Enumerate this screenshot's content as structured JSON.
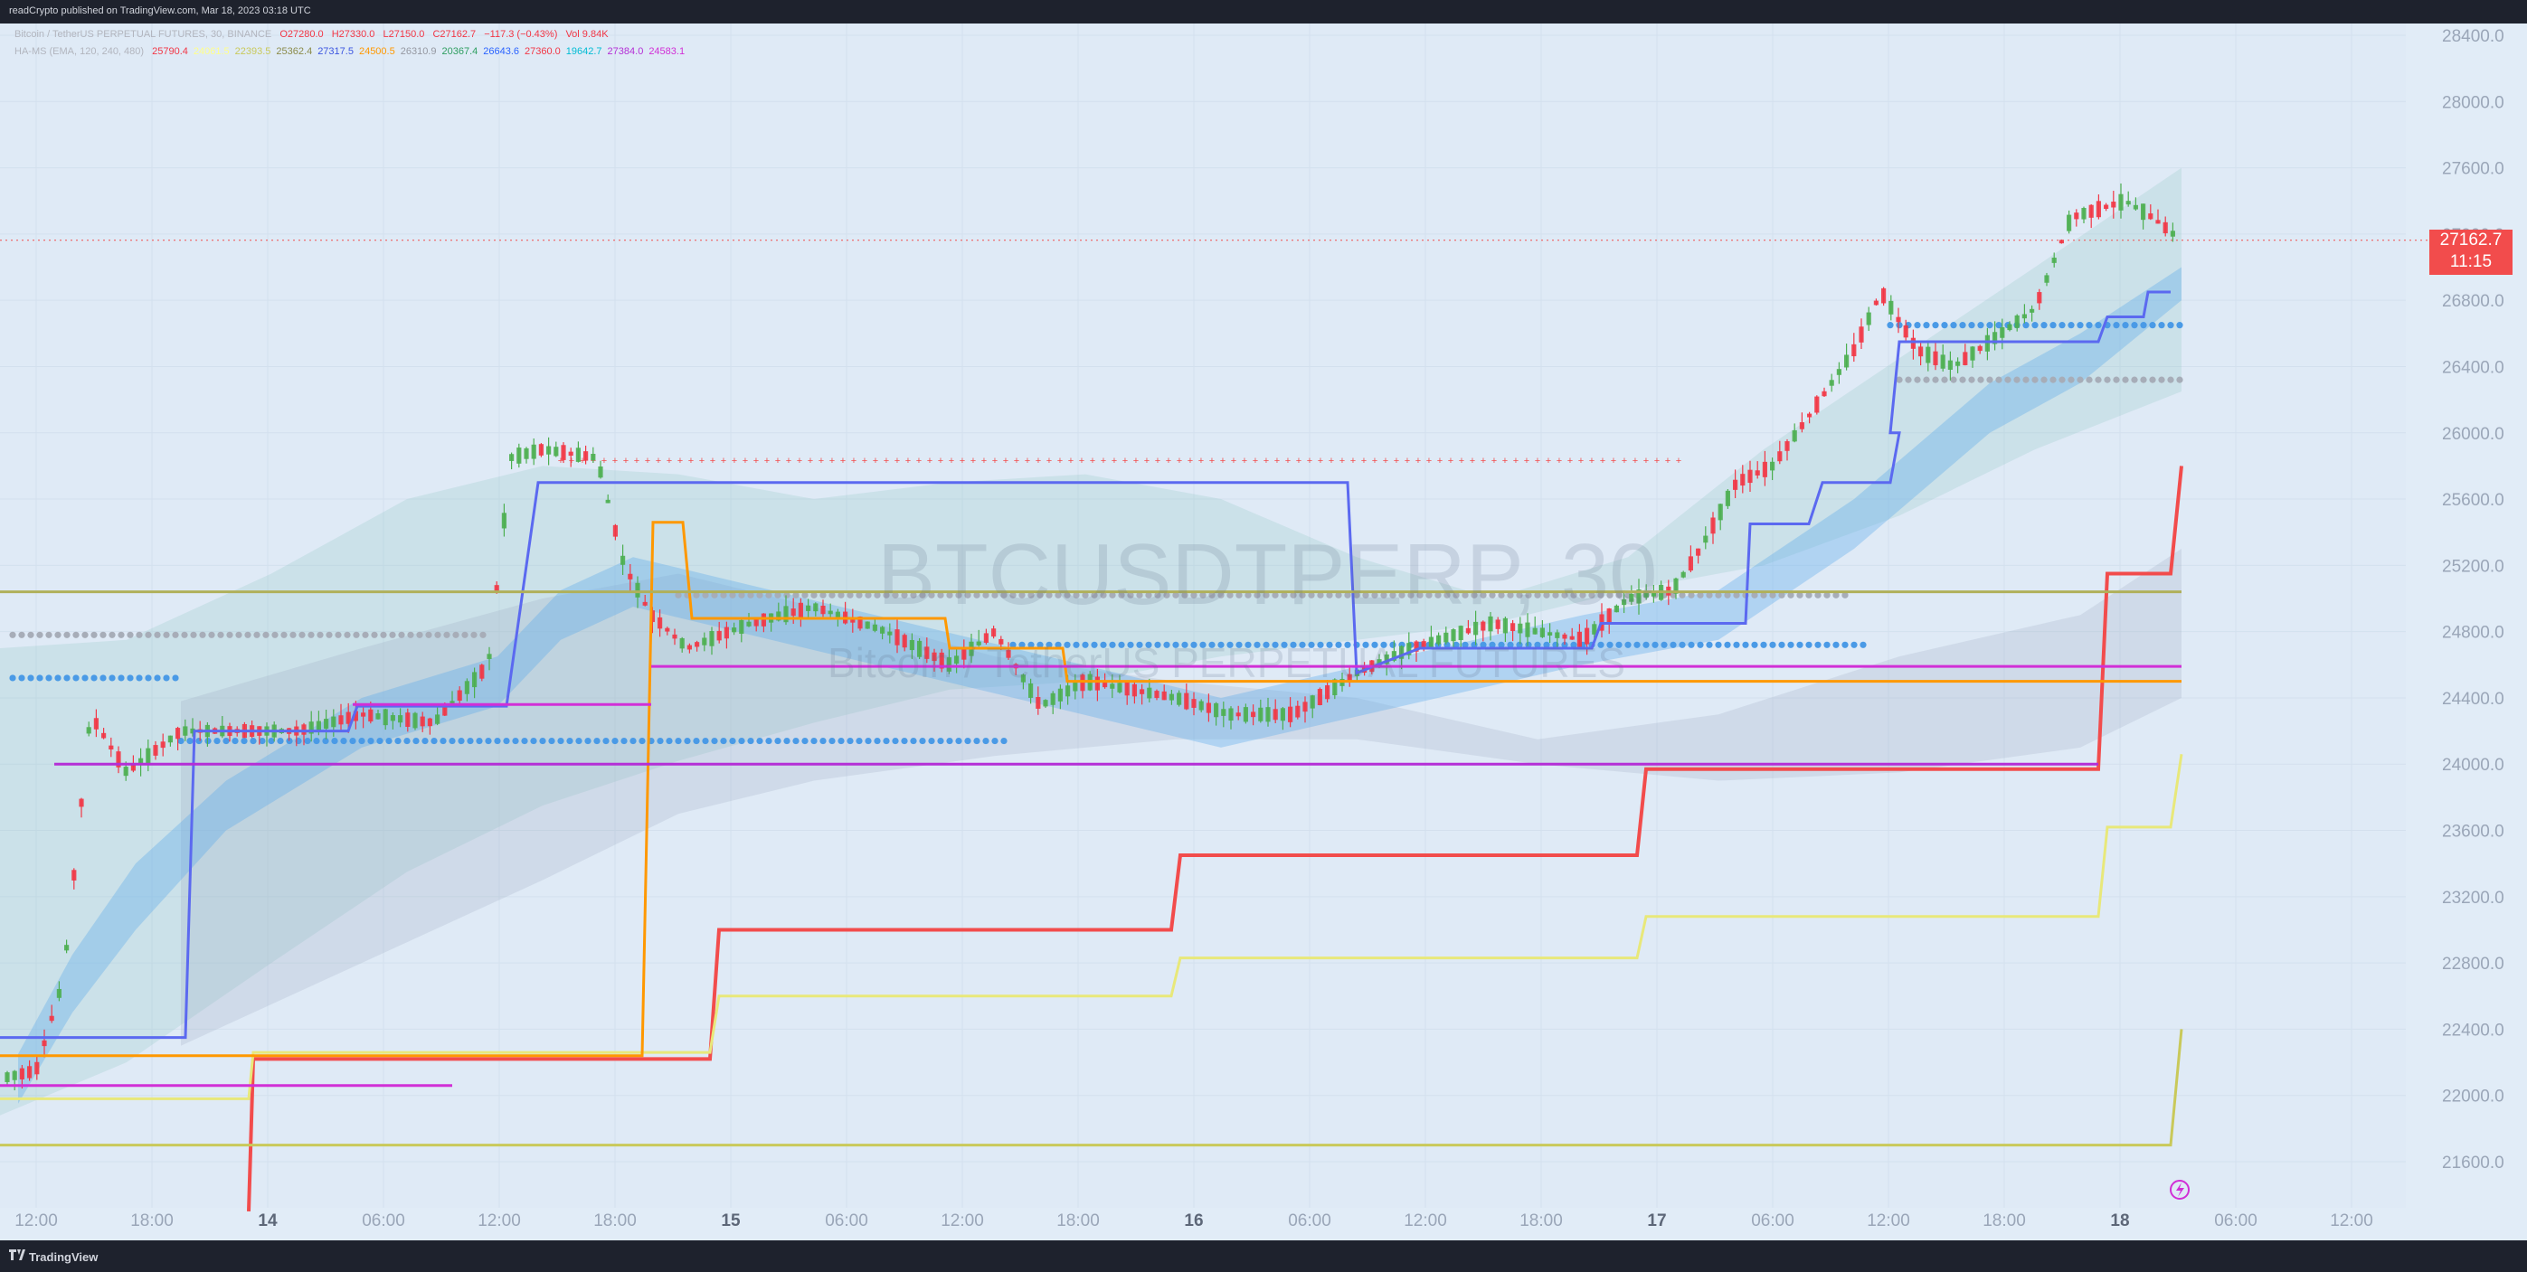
{
  "header": {
    "published": "readCrypto published on TradingView.com, Mar 18, 2023 03:18 UTC"
  },
  "legend1": {
    "symbol": "Bitcoin / TetherUS PERPETUAL FUTURES, 30, BINANCE",
    "o": "O27280.0",
    "h": "H27330.0",
    "l": "L27150.0",
    "c": "C27162.7",
    "change": "−117.3 (−0.43%)",
    "vol": "Vol 9.84K"
  },
  "legend2": {
    "name": "HA-MS (EMA, 120, 240, 480)",
    "values": [
      {
        "text": "25790.4",
        "color": "#f23645"
      },
      {
        "text": "24061.5",
        "color": "#ffff8a"
      },
      {
        "text": "22393.5",
        "color": "#c9c95a"
      },
      {
        "text": "25362.4",
        "color": "#8b8b4a"
      },
      {
        "text": "27317.5",
        "color": "#3d56e0"
      },
      {
        "text": "24500.5",
        "color": "#ff9800"
      },
      {
        "text": "26310.9",
        "color": "#9598a1"
      },
      {
        "text": "20367.4",
        "color": "#2e9e60"
      },
      {
        "text": "26643.6",
        "color": "#2962ff"
      },
      {
        "text": "27360.0",
        "color": "#f23645"
      },
      {
        "text": "19642.7",
        "color": "#00bcd4"
      },
      {
        "text": "27384.0",
        "color": "#b42fd6"
      },
      {
        "text": "24583.1",
        "color": "#d12fd6"
      }
    ]
  },
  "price_label": {
    "price": "27162.7",
    "countdown": "11:15"
  },
  "watermark": {
    "ticker": "BTCUSDTPERP, 30",
    "description": "Bitcoin / TetherUS PERPETUAL FUTURES"
  },
  "footer": {
    "brand": "TradingView"
  },
  "chart_data": {
    "type": "line",
    "title": "",
    "xlabel": "",
    "ylabel": "",
    "ylim": [
      21400,
      28500
    ],
    "y_ticks": [
      "28400.0",
      "28000.0",
      "27600.0",
      "27200.0",
      "26800.0",
      "26400.0",
      "26000.0",
      "25600.0",
      "25200.0",
      "24800.0",
      "24400.0",
      "24000.0",
      "23600.0",
      "23200.0",
      "22800.0",
      "22400.0",
      "22000.0",
      "21600.0"
    ],
    "x_ticks": [
      "12:00",
      "18:00",
      "14",
      "06:00",
      "12:00",
      "18:00",
      "15",
      "06:00",
      "12:00",
      "18:00",
      "16",
      "06:00",
      "12:00",
      "18:00",
      "17",
      "06:00",
      "12:00",
      "18:00",
      "18",
      "06:00",
      "12:00"
    ],
    "grid": true,
    "series": [
      {
        "color": "#5b69f0",
        "values": [
          [
            0,
            22350
          ],
          [
            205,
            22350
          ],
          [
            215,
            24200
          ],
          [
            385,
            24200
          ],
          [
            395,
            24350
          ],
          [
            560,
            24350
          ],
          [
            595,
            25700
          ],
          [
            1490,
            25700
          ],
          [
            1500,
            24550
          ],
          [
            1570,
            24700
          ],
          [
            1760,
            24700
          ],
          [
            1770,
            24850
          ],
          [
            1930,
            24850
          ],
          [
            1935,
            25450
          ],
          [
            2000,
            25450
          ],
          [
            2015,
            25700
          ],
          [
            2090,
            25700
          ],
          [
            2100,
            26000
          ],
          [
            2090,
            26000
          ],
          [
            2100,
            26550
          ],
          [
            2320,
            26550
          ],
          [
            2330,
            26700
          ],
          [
            2370,
            26700
          ],
          [
            2375,
            26850
          ],
          [
            2400,
            26850
          ]
        ]
      },
      {
        "color": "#f24c4c",
        "values": [
          [
            275,
            21300
          ],
          [
            280,
            22220
          ],
          [
            785,
            22220
          ],
          [
            795,
            23000
          ],
          [
            1295,
            23000
          ],
          [
            1305,
            23450
          ],
          [
            1810,
            23450
          ],
          [
            1820,
            23970
          ],
          [
            2320,
            23970
          ],
          [
            2330,
            25150
          ],
          [
            2400,
            25150
          ],
          [
            2412,
            25800
          ]
        ]
      },
      {
        "color": "#e8e87a",
        "values": [
          [
            0,
            21980
          ],
          [
            275,
            21980
          ],
          [
            280,
            22260
          ],
          [
            785,
            22260
          ],
          [
            795,
            22600
          ],
          [
            1295,
            22600
          ],
          [
            1305,
            22830
          ],
          [
            1810,
            22830
          ],
          [
            1820,
            23080
          ],
          [
            2320,
            23080
          ],
          [
            2330,
            23620
          ],
          [
            2400,
            23620
          ],
          [
            2412,
            24060
          ]
        ]
      },
      {
        "color": "#c9c95a",
        "values": [
          [
            0,
            21700
          ],
          [
            2400,
            21700
          ],
          [
            2412,
            22400
          ]
        ]
      },
      {
        "color": "#ff9800",
        "values": [
          [
            0,
            22240
          ],
          [
            710,
            22240
          ],
          [
            722,
            25460
          ],
          [
            755,
            25460
          ],
          [
            765,
            24880
          ],
          [
            1045,
            24880
          ],
          [
            1050,
            24700
          ],
          [
            1175,
            24700
          ],
          [
            1180,
            24500
          ],
          [
            2412,
            24500
          ]
        ]
      },
      {
        "color": "#b0b05a",
        "values": [
          [
            0,
            25040
          ],
          [
            2412,
            25040
          ]
        ]
      },
      {
        "color": "#b42fd6",
        "values": [
          [
            60,
            24000
          ],
          [
            2320,
            24000
          ]
        ]
      },
      {
        "color": "#d12fd6",
        "values": [
          [
            0,
            22060
          ],
          [
            500,
            22060
          ]
        ]
      },
      {
        "color": "#d12fd6",
        "values": [
          [
            390,
            24360
          ],
          [
            720,
            24360
          ]
        ]
      },
      {
        "color": "#d12fd6",
        "values": [
          [
            720,
            24590
          ],
          [
            2412,
            24590
          ]
        ]
      }
    ]
  }
}
